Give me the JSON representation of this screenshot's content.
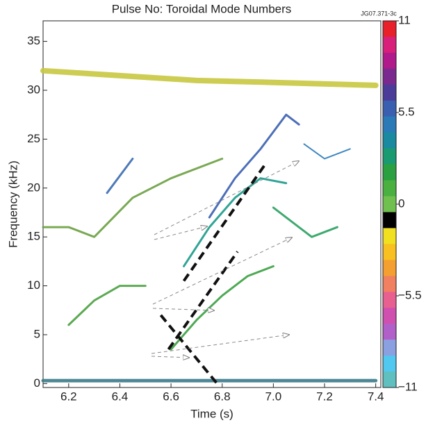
{
  "chart_data": {
    "type": "spectrogram",
    "title": "Pulse No: Toroidal Mode Numbers",
    "figure_id": "JG07.371-3c",
    "x_label": "Time (s)",
    "y_label": "Frequency (kHz)",
    "xlim": [
      6.1,
      7.42
    ],
    "ylim": [
      -0.4,
      37.1
    ],
    "xticks": [
      6.2,
      6.4,
      6.6,
      6.8,
      {
        "value": 7,
        "label": "7.0"
      },
      7.2,
      7.4
    ],
    "yticks": [
      0,
      5,
      10,
      15,
      20,
      25,
      30,
      35
    ],
    "clim": [
      -11,
      11
    ],
    "cticks": [
      11,
      5.5,
      0,
      {
        "value": -5.5,
        "label": "−5.5"
      },
      {
        "value": -11,
        "label": "−11"
      }
    ],
    "colorbar_colors": [
      "#e8202a",
      "#d8207a",
      "#b01a8a",
      "#7a2a8e",
      "#4a3c98",
      "#3a5fb0",
      "#2a7ab8",
      "#1a8aa0",
      "#1a9a70",
      "#2aa040",
      "#4ab040",
      "#70c050",
      "#000000",
      "#f0e020",
      "#f8c020",
      "#f4a030",
      "#f08060",
      "#e86090",
      "#d050b0",
      "#b060c8",
      "#8aa0e0",
      "#50c8f0",
      "#60c0c0"
    ],
    "traces": [
      {
        "color": "#c8c840",
        "width": 8,
        "x": [
          6.1,
          6.4,
          6.7,
          7.0,
          7.4
        ],
        "y": [
          32,
          31.5,
          31,
          30.8,
          30.5
        ]
      },
      {
        "color": "#3a5fb0",
        "width": 3,
        "x": [
          6.75,
          6.85,
          6.95,
          7.05,
          7.1
        ],
        "y": [
          17,
          21,
          24,
          27.5,
          26.5
        ]
      },
      {
        "color": "#1a9a8a",
        "width": 3,
        "x": [
          6.65,
          6.75,
          6.85,
          6.95,
          7.05
        ],
        "y": [
          12,
          16,
          19,
          21,
          20.5
        ]
      },
      {
        "color": "#3aa040",
        "width": 3,
        "x": [
          6.6,
          6.7,
          6.8,
          6.9,
          7.0
        ],
        "y": [
          3.5,
          6.5,
          9,
          11,
          12
        ]
      },
      {
        "color": "#4aa040",
        "width": 3,
        "x": [
          6.2,
          6.3,
          6.4,
          6.5
        ],
        "y": [
          6,
          8.5,
          10,
          10
        ]
      },
      {
        "color": "#6aa040",
        "width": 3,
        "x": [
          6.1,
          6.2,
          6.3,
          6.45,
          6.6,
          6.8
        ],
        "y": [
          16,
          16,
          15,
          19,
          21,
          23
        ]
      },
      {
        "color": "#3a6ab0",
        "width": 3,
        "x": [
          6.35,
          6.45
        ],
        "y": [
          19.5,
          23
        ]
      },
      {
        "color": "#2aa060",
        "width": 3,
        "x": [
          7.0,
          7.05,
          7.15,
          7.25
        ],
        "y": [
          18,
          17,
          15,
          16
        ]
      },
      {
        "color": "#2a7ab8",
        "width": 2,
        "x": [
          7.12,
          7.2,
          7.3
        ],
        "y": [
          24.5,
          23,
          24
        ]
      },
      {
        "color": "#3a7a8a",
        "width": 5,
        "x": [
          6.1,
          7.4
        ],
        "y": [
          0.3,
          0.3
        ]
      }
    ],
    "guides": [
      {
        "x": [
          6.65,
          6.97
        ],
        "y": [
          10.5,
          22.5
        ]
      },
      {
        "x": [
          6.59,
          6.86
        ],
        "y": [
          3.5,
          13.5
        ]
      },
      {
        "x": [
          6.56,
          6.78
        ],
        "y": [
          7,
          0
        ]
      }
    ]
  }
}
